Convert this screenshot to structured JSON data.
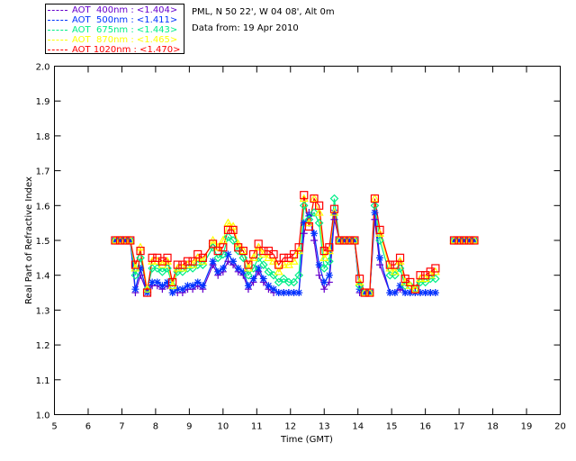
{
  "header": {
    "location": "PML, N 50 22', W 04 08', Alt 0m",
    "date": "Data from: 19 Apr 2010"
  },
  "legend": [
    {
      "label": "AOT  400nm : <1.404>",
      "color": "#6600cc"
    },
    {
      "label": "AOT  500nm : <1.411>",
      "color": "#0033ff"
    },
    {
      "label": "AOT  675nm : <1.443>",
      "color": "#00ee88"
    },
    {
      "label": "AOT  870nm : <1.465>",
      "color": "#ffff00"
    },
    {
      "label": "AOT 1020nm : <1.470>",
      "color": "#ff0000"
    }
  ],
  "chart_data": {
    "type": "line",
    "title": "",
    "xlabel": "Time (GMT)",
    "ylabel": "Real Part of Refractive Index",
    "xlim": [
      5,
      20
    ],
    "ylim": [
      1.0,
      2.0
    ],
    "xticks": [
      "5",
      "6",
      "7",
      "8",
      "9",
      "10",
      "11",
      "12",
      "13",
      "14",
      "15",
      "16",
      "17",
      "18",
      "19",
      "20"
    ],
    "yticks": [
      "1.0",
      "1.1",
      "1.2",
      "1.3",
      "1.4",
      "1.5",
      "1.6",
      "1.7",
      "1.8",
      "1.9",
      "2.0"
    ],
    "x": [
      6.8,
      6.95,
      7.1,
      7.25,
      7.4,
      7.55,
      7.75,
      7.9,
      8.05,
      8.2,
      8.35,
      8.5,
      8.65,
      8.8,
      8.95,
      9.1,
      9.25,
      9.4,
      9.7,
      9.85,
      10.0,
      10.15,
      10.3,
      10.45,
      10.6,
      10.75,
      10.9,
      11.05,
      11.2,
      11.35,
      11.5,
      11.65,
      11.8,
      11.95,
      12.1,
      12.25,
      12.4,
      12.55,
      12.7,
      12.85,
      13.0,
      13.15,
      13.3,
      13.45,
      13.6,
      13.75,
      13.9,
      14.05,
      14.2,
      14.35,
      14.5,
      14.65,
      14.95,
      15.1,
      15.25,
      15.4,
      15.55,
      15.7,
      15.85,
      16.0,
      16.15,
      16.3,
      16.85,
      17.0,
      17.15,
      17.3,
      17.45
    ],
    "series": [
      {
        "name": "AOT 400nm",
        "marker": "plus",
        "color": "#6600cc",
        "values": [
          1.5,
          1.5,
          1.5,
          1.5,
          1.35,
          1.4,
          1.35,
          1.37,
          1.37,
          1.36,
          1.37,
          1.35,
          1.35,
          1.35,
          1.36,
          1.36,
          1.37,
          1.36,
          1.43,
          1.4,
          1.41,
          1.44,
          1.43,
          1.41,
          1.4,
          1.36,
          1.38,
          1.41,
          1.38,
          1.36,
          1.35,
          1.35,
          1.35,
          1.35,
          1.35,
          1.35,
          1.52,
          1.58,
          1.5,
          1.4,
          1.36,
          1.38,
          1.56,
          1.5,
          1.5,
          1.5,
          1.5,
          1.35,
          1.35,
          1.35,
          1.56,
          1.43,
          1.35,
          1.35,
          1.36,
          1.35,
          1.35,
          1.35,
          1.35,
          1.35,
          1.35,
          1.35,
          1.5,
          1.5,
          1.5,
          1.5,
          1.5
        ]
      },
      {
        "name": "AOT 500nm",
        "marker": "asterisk",
        "color": "#0033ff",
        "values": [
          1.5,
          1.5,
          1.5,
          1.5,
          1.36,
          1.42,
          1.35,
          1.38,
          1.38,
          1.37,
          1.38,
          1.35,
          1.36,
          1.36,
          1.37,
          1.37,
          1.38,
          1.37,
          1.44,
          1.41,
          1.42,
          1.46,
          1.44,
          1.42,
          1.41,
          1.37,
          1.39,
          1.42,
          1.39,
          1.37,
          1.36,
          1.35,
          1.35,
          1.35,
          1.35,
          1.35,
          1.55,
          1.57,
          1.52,
          1.43,
          1.38,
          1.4,
          1.58,
          1.5,
          1.5,
          1.5,
          1.5,
          1.36,
          1.35,
          1.35,
          1.58,
          1.45,
          1.35,
          1.35,
          1.37,
          1.35,
          1.35,
          1.35,
          1.35,
          1.35,
          1.35,
          1.35,
          1.5,
          1.5,
          1.5,
          1.5,
          1.5
        ]
      },
      {
        "name": "AOT 675nm",
        "marker": "diamond",
        "color": "#00ee88",
        "values": [
          1.5,
          1.5,
          1.5,
          1.5,
          1.4,
          1.45,
          1.36,
          1.42,
          1.42,
          1.41,
          1.42,
          1.37,
          1.41,
          1.41,
          1.42,
          1.42,
          1.43,
          1.43,
          1.48,
          1.45,
          1.46,
          1.51,
          1.5,
          1.47,
          1.45,
          1.4,
          1.42,
          1.45,
          1.43,
          1.41,
          1.4,
          1.38,
          1.39,
          1.38,
          1.38,
          1.4,
          1.6,
          1.56,
          1.58,
          1.55,
          1.42,
          1.44,
          1.62,
          1.5,
          1.5,
          1.5,
          1.5,
          1.37,
          1.35,
          1.35,
          1.6,
          1.5,
          1.4,
          1.4,
          1.42,
          1.37,
          1.37,
          1.36,
          1.38,
          1.38,
          1.39,
          1.39,
          1.5,
          1.5,
          1.5,
          1.5,
          1.5
        ]
      },
      {
        "name": "AOT 870nm",
        "marker": "triangle",
        "color": "#ffff00",
        "values": [
          1.5,
          1.5,
          1.5,
          1.5,
          1.42,
          1.48,
          1.36,
          1.44,
          1.44,
          1.43,
          1.44,
          1.37,
          1.42,
          1.42,
          1.43,
          1.43,
          1.45,
          1.44,
          1.5,
          1.48,
          1.5,
          1.55,
          1.54,
          1.49,
          1.47,
          1.42,
          1.45,
          1.48,
          1.46,
          1.45,
          1.44,
          1.41,
          1.43,
          1.43,
          1.44,
          1.47,
          1.62,
          1.55,
          1.62,
          1.58,
          1.45,
          1.47,
          1.58,
          1.5,
          1.5,
          1.5,
          1.5,
          1.38,
          1.35,
          1.35,
          1.62,
          1.52,
          1.42,
          1.41,
          1.44,
          1.38,
          1.37,
          1.36,
          1.39,
          1.39,
          1.4,
          1.41,
          1.5,
          1.5,
          1.5,
          1.5,
          1.5
        ]
      },
      {
        "name": "AOT 1020nm",
        "marker": "square",
        "color": "#ff0000",
        "values": [
          1.5,
          1.5,
          1.5,
          1.5,
          1.43,
          1.47,
          1.35,
          1.45,
          1.45,
          1.44,
          1.45,
          1.38,
          1.43,
          1.43,
          1.44,
          1.44,
          1.46,
          1.45,
          1.49,
          1.47,
          1.48,
          1.53,
          1.53,
          1.48,
          1.47,
          1.43,
          1.46,
          1.49,
          1.47,
          1.47,
          1.46,
          1.43,
          1.45,
          1.45,
          1.46,
          1.48,
          1.63,
          1.54,
          1.62,
          1.6,
          1.47,
          1.48,
          1.59,
          1.5,
          1.5,
          1.5,
          1.5,
          1.39,
          1.35,
          1.35,
          1.62,
          1.53,
          1.43,
          1.43,
          1.45,
          1.39,
          1.38,
          1.36,
          1.4,
          1.4,
          1.41,
          1.42,
          1.5,
          1.5,
          1.5,
          1.5,
          1.5
        ]
      }
    ]
  }
}
